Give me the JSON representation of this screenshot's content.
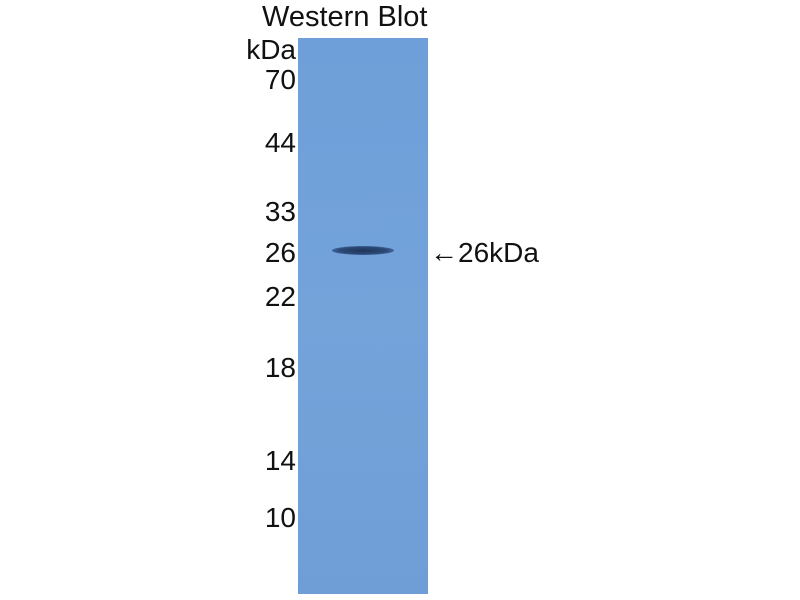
{
  "title": "Western Blot",
  "unit_label": "kDa",
  "markers": [
    "70",
    "44",
    "33",
    "26",
    "22",
    "18",
    "14",
    "10"
  ],
  "band_annotation": {
    "arrow": "←",
    "label": "26kDa"
  },
  "colors": {
    "membrane": "#72a0d8",
    "band": "#243f68"
  }
}
